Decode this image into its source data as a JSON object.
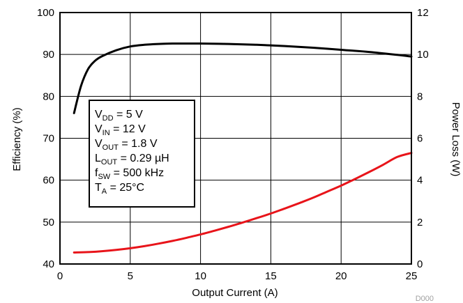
{
  "chart_data": {
    "type": "line",
    "xlabel": "Output Current (A)",
    "ylabel_left": "Efficiency (%)",
    "ylabel_right": "Power Loss (W)",
    "xlim": [
      0,
      25
    ],
    "ylim_left": [
      40,
      100
    ],
    "ylim_right": [
      0,
      12
    ],
    "x_ticks": [
      "0",
      "5",
      "10",
      "15",
      "20",
      "25"
    ],
    "y_left_ticks": [
      "40",
      "50",
      "60",
      "70",
      "80",
      "90",
      "100"
    ],
    "y_right_ticks": [
      "0",
      "2",
      "4",
      "6",
      "8",
      "10",
      "12"
    ],
    "grid": true,
    "figure_code": "D000",
    "annotation": [
      {
        "main": "V",
        "sub": "DD",
        "rest": " = 5 V"
      },
      {
        "main": "V",
        "sub": "IN",
        "rest": " = 12 V"
      },
      {
        "main": "V",
        "sub": "OUT",
        "rest": " = 1.8 V"
      },
      {
        "main": "L",
        "sub": "OUT",
        "rest": " = 0.29 µH"
      },
      {
        "main": "f",
        "sub": "SW",
        "rest": " = 500 kHz"
      },
      {
        "main": "T",
        "sub": "A",
        "rest": " = 25°C"
      }
    ],
    "series": [
      {
        "axis": "left",
        "color": "#000000",
        "x": [
          1,
          1.5,
          2,
          2.5,
          3,
          4,
          5,
          6,
          7,
          8,
          9,
          10,
          12,
          14,
          16,
          18,
          20,
          22,
          24,
          25
        ],
        "y": [
          76.0,
          82.5,
          86.5,
          88.5,
          89.6,
          91.0,
          91.9,
          92.3,
          92.5,
          92.6,
          92.6,
          92.6,
          92.5,
          92.3,
          92.0,
          91.6,
          91.1,
          90.6,
          89.9,
          89.5
        ]
      },
      {
        "axis": "right",
        "color": "#e8141a",
        "x": [
          1,
          2,
          3,
          4,
          5,
          6,
          7,
          8,
          9,
          10,
          11,
          12,
          13,
          14,
          15,
          16,
          17,
          18,
          19,
          20,
          21,
          22,
          23,
          24,
          25
        ],
        "y": [
          0.55,
          0.57,
          0.61,
          0.67,
          0.75,
          0.85,
          0.97,
          1.1,
          1.25,
          1.41,
          1.59,
          1.78,
          1.98,
          2.19,
          2.41,
          2.65,
          2.9,
          3.16,
          3.45,
          3.74,
          4.06,
          4.39,
          4.74,
          5.11,
          5.3
        ]
      }
    ]
  }
}
